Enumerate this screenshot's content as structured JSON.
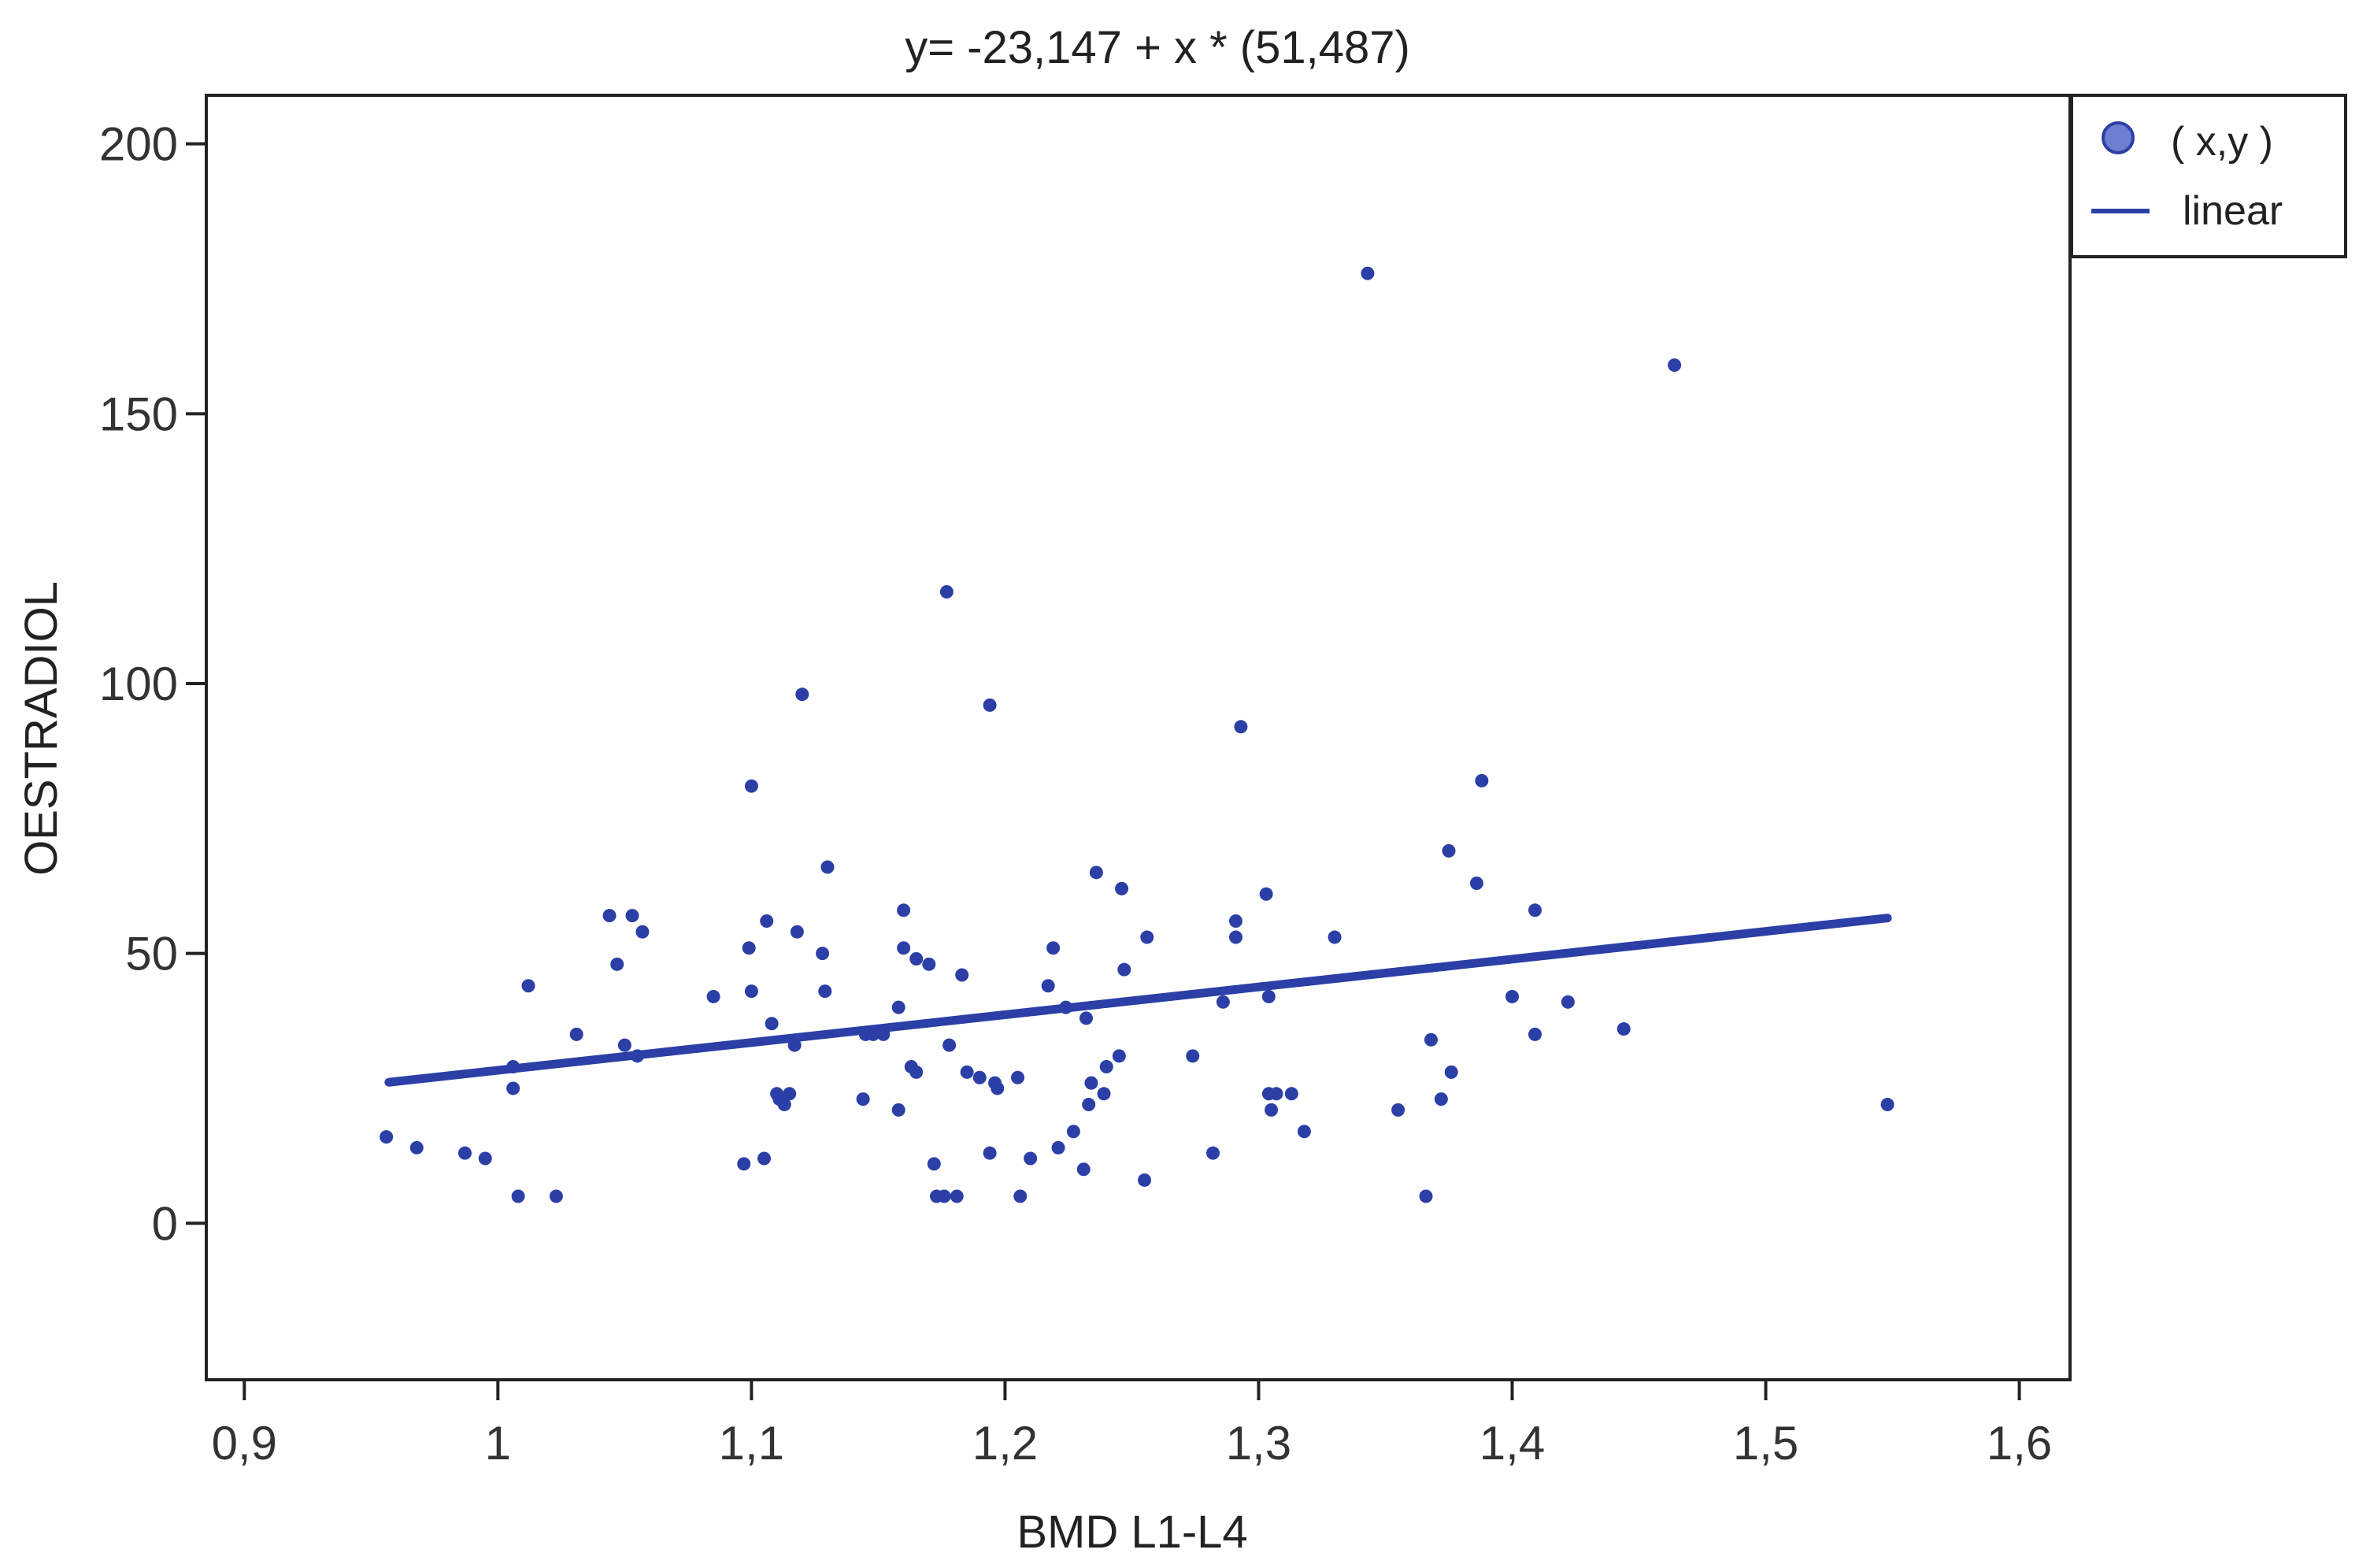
{
  "chart_data": {
    "type": "scatter",
    "title": "y= -23,147 + x * (51,487)",
    "xlabel": "BMD L1-L4",
    "ylabel": "OESTRADIOL",
    "xlim": [
      0.885,
      1.62
    ],
    "ylim": [
      -29,
      209
    ],
    "x_ticks": [
      0.9,
      1.0,
      1.1,
      1.2,
      1.3,
      1.4,
      1.5,
      1.6
    ],
    "x_tick_labels": [
      "0,9",
      "1",
      "1,1",
      "1,2",
      "1,3",
      "1,4",
      "1,5",
      "1,6"
    ],
    "y_ticks": [
      0,
      50,
      100,
      150,
      200
    ],
    "y_tick_labels": [
      "0",
      "50",
      "100",
      "150",
      "200"
    ],
    "grid": false,
    "legend_position": "top-right, outside plot",
    "legend": [
      {
        "label": "( x,y )",
        "marker": "circle"
      },
      {
        "label": "linear",
        "marker": "line"
      }
    ],
    "color": "#2b3fa6",
    "fit": {
      "intercept": -23.147,
      "slope": 51.487,
      "x_range": [
        0.957,
        1.548
      ]
    },
    "points": [
      [
        0.956,
        16
      ],
      [
        0.968,
        14
      ],
      [
        0.987,
        13
      ],
      [
        0.995,
        12
      ],
      [
        1.006,
        29
      ],
      [
        1.006,
        25
      ],
      [
        1.008,
        5
      ],
      [
        1.012,
        44
      ],
      [
        1.023,
        5
      ],
      [
        1.031,
        35
      ],
      [
        1.044,
        57
      ],
      [
        1.047,
        48
      ],
      [
        1.05,
        33
      ],
      [
        1.053,
        57
      ],
      [
        1.055,
        31
      ],
      [
        1.057,
        54
      ],
      [
        1.085,
        42
      ],
      [
        1.097,
        11
      ],
      [
        1.099,
        51
      ],
      [
        1.1,
        81
      ],
      [
        1.1,
        43
      ],
      [
        1.105,
        12
      ],
      [
        1.106,
        56
      ],
      [
        1.108,
        37
      ],
      [
        1.11,
        24
      ],
      [
        1.111,
        23
      ],
      [
        1.113,
        22
      ],
      [
        1.115,
        24
      ],
      [
        1.117,
        33
      ],
      [
        1.118,
        54
      ],
      [
        1.12,
        98
      ],
      [
        1.128,
        50
      ],
      [
        1.129,
        43
      ],
      [
        1.13,
        66
      ],
      [
        1.144,
        23
      ],
      [
        1.145,
        35
      ],
      [
        1.148,
        35
      ],
      [
        1.152,
        35
      ],
      [
        1.158,
        21
      ],
      [
        1.158,
        40
      ],
      [
        1.16,
        58
      ],
      [
        1.16,
        51
      ],
      [
        1.163,
        29
      ],
      [
        1.165,
        28
      ],
      [
        1.165,
        49
      ],
      [
        1.17,
        48
      ],
      [
        1.172,
        11
      ],
      [
        1.173,
        5
      ],
      [
        1.176,
        5
      ],
      [
        1.177,
        117
      ],
      [
        1.178,
        33
      ],
      [
        1.181,
        5
      ],
      [
        1.183,
        46
      ],
      [
        1.185,
        28
      ],
      [
        1.19,
        27
      ],
      [
        1.194,
        13
      ],
      [
        1.194,
        96
      ],
      [
        1.196,
        26
      ],
      [
        1.197,
        25
      ],
      [
        1.205,
        27
      ],
      [
        1.206,
        5
      ],
      [
        1.21,
        12
      ],
      [
        1.217,
        44
      ],
      [
        1.219,
        51
      ],
      [
        1.221,
        14
      ],
      [
        1.224,
        40
      ],
      [
        1.227,
        17
      ],
      [
        1.231,
        10
      ],
      [
        1.232,
        38
      ],
      [
        1.233,
        22
      ],
      [
        1.234,
        26
      ],
      [
        1.236,
        65
      ],
      [
        1.239,
        24
      ],
      [
        1.24,
        29
      ],
      [
        1.245,
        31
      ],
      [
        1.246,
        62
      ],
      [
        1.247,
        47
      ],
      [
        1.255,
        8
      ],
      [
        1.256,
        53
      ],
      [
        1.274,
        31
      ],
      [
        1.282,
        13
      ],
      [
        1.286,
        41
      ],
      [
        1.291,
        56
      ],
      [
        1.291,
        53
      ],
      [
        1.293,
        92
      ],
      [
        1.303,
        61
      ],
      [
        1.304,
        42
      ],
      [
        1.304,
        24
      ],
      [
        1.305,
        21
      ],
      [
        1.307,
        24
      ],
      [
        1.313,
        24
      ],
      [
        1.318,
        17
      ],
      [
        1.33,
        53
      ],
      [
        1.343,
        176
      ],
      [
        1.355,
        21
      ],
      [
        1.366,
        5
      ],
      [
        1.368,
        34
      ],
      [
        1.372,
        23
      ],
      [
        1.375,
        69
      ],
      [
        1.376,
        28
      ],
      [
        1.386,
        63
      ],
      [
        1.388,
        82
      ],
      [
        1.4,
        42
      ],
      [
        1.409,
        58
      ],
      [
        1.409,
        35
      ],
      [
        1.422,
        41
      ],
      [
        1.444,
        36
      ],
      [
        1.464,
        159
      ],
      [
        1.548,
        22
      ]
    ]
  }
}
